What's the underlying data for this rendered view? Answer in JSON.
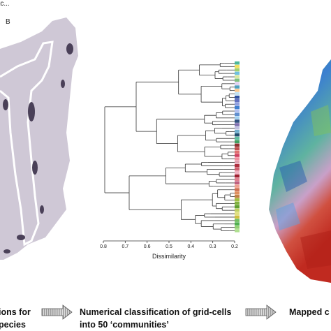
{
  "left_panel": {
    "note": "etc...",
    "label": "B"
  },
  "dendrogram": {
    "ticks": [
      "0.8",
      "0.7",
      "0.6",
      "0.5",
      "0.4",
      "0.3",
      "0.2"
    ],
    "axis_label": "Dissimilarity"
  },
  "captions": [
    {
      "lines": [
        "ions for",
        "pecies"
      ]
    },
    {
      "lines": [
        "Numerical classification of grid-cells",
        "into 50 ‘communities’"
      ]
    },
    {
      "lines": [
        "Mapped c"
      ]
    }
  ]
}
